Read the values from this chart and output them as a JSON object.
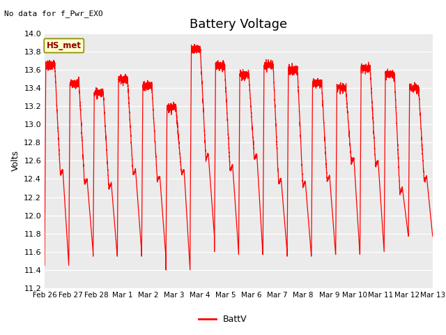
{
  "title": "Battery Voltage",
  "ylabel": "Volts",
  "note": "No data for f_Pwr_EXO",
  "legend_label": "BattV",
  "legend_source": "HS_met",
  "ylim": [
    11.2,
    14.0
  ],
  "yticks": [
    11.2,
    11.4,
    11.6,
    11.8,
    12.0,
    12.2,
    12.4,
    12.6,
    12.8,
    13.0,
    13.2,
    13.4,
    13.6,
    13.8,
    14.0
  ],
  "xtick_labels": [
    "Feb 26",
    "Feb 27",
    "Feb 28",
    "Mar 1",
    "Mar 2",
    "Mar 3",
    "Mar 4",
    "Mar 5",
    "Mar 6",
    "Mar 7",
    "Mar 8",
    "Mar 9",
    "Mar 10",
    "Mar 11",
    "Mar 12",
    "Mar 13"
  ],
  "line_color": "#ff0000",
  "fig_bg_color": "#ffffff",
  "plot_bg_color": "#ebebeb",
  "grid_color": "#ffffff",
  "title_fontsize": 13,
  "label_fontsize": 9,
  "tick_fontsize": 8,
  "note_fontsize": 8,
  "figwidth": 6.4,
  "figheight": 4.8,
  "dpi": 100,
  "n_days": 16,
  "day_peaks": [
    13.65,
    13.45,
    13.35,
    13.5,
    13.42,
    13.19,
    13.83,
    13.65,
    13.55,
    13.65,
    13.6,
    13.45,
    13.4,
    13.62,
    13.55,
    13.4
  ],
  "day_lows": [
    11.45,
    11.6,
    11.55,
    11.6,
    11.55,
    11.4,
    11.78,
    11.6,
    11.57,
    11.6,
    11.55,
    11.57,
    11.57,
    11.6,
    11.77,
    11.77
  ],
  "mid_dips": [
    12.45,
    12.35,
    12.3,
    12.45,
    12.38,
    12.45,
    12.62,
    12.5,
    12.62,
    12.35,
    12.32,
    12.38,
    12.58,
    12.55,
    12.25,
    12.38
  ]
}
